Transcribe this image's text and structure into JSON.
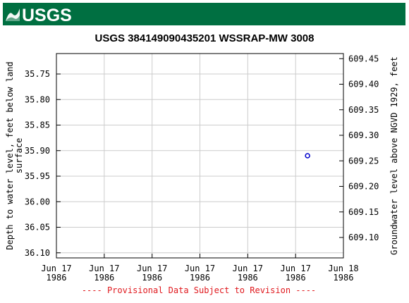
{
  "header": {
    "logo_text": "USGS",
    "brand_color": "#006f41"
  },
  "chart_data": {
    "type": "scatter",
    "title": "USGS 384149090435201 WSSRAP-MW 3008",
    "ylabel_left": "Depth to water level, feet below land surface",
    "ylabel_left_lines": [
      "Depth to water level, feet below land",
      "surface"
    ],
    "ylabel_right": "Groundwater level above NGVD 1929, feet",
    "left_axis": {
      "ylim": [
        35.71,
        36.11
      ],
      "inverted": true,
      "ticks": [
        35.75,
        35.8,
        35.85,
        35.9,
        35.95,
        36.0,
        36.05,
        36.1
      ],
      "tick_labels": [
        "35.75",
        "35.80",
        "35.85",
        "35.90",
        "35.95",
        "36.00",
        "36.05",
        "36.10"
      ]
    },
    "right_axis": {
      "ylim": [
        609.06,
        609.46
      ],
      "ticks": [
        609.45,
        609.4,
        609.35,
        609.3,
        609.25,
        609.2,
        609.15,
        609.1
      ],
      "tick_labels": [
        "609.45",
        "609.40",
        "609.35",
        "609.30",
        "609.25",
        "609.20",
        "609.15",
        "609.10"
      ]
    },
    "x_axis": {
      "ticks": [
        "Jun 17 1986 00:00",
        "Jun 17 1986 04:00",
        "Jun 17 1986 08:00",
        "Jun 17 1986 12:00",
        "Jun 17 1986 16:00",
        "Jun 17 1986 20:00",
        "Jun 18 1986 00:00"
      ],
      "tick_labels": [
        [
          "Jun 17",
          "1986"
        ],
        [
          "Jun 17",
          "1986"
        ],
        [
          "Jun 17",
          "1986"
        ],
        [
          "Jun 17",
          "1986"
        ],
        [
          "Jun 17",
          "1986"
        ],
        [
          "Jun 17",
          "1986"
        ],
        [
          "Jun 18",
          "1986"
        ]
      ]
    },
    "points": [
      {
        "x": "Jun 17 1986 21:00",
        "depth": 35.91,
        "elevation": 609.26
      }
    ],
    "marker_color": "#0000cc",
    "grid": true,
    "footnote": "---- Provisional Data Subject to Revision ----",
    "footnote_color": "#e0191e"
  }
}
